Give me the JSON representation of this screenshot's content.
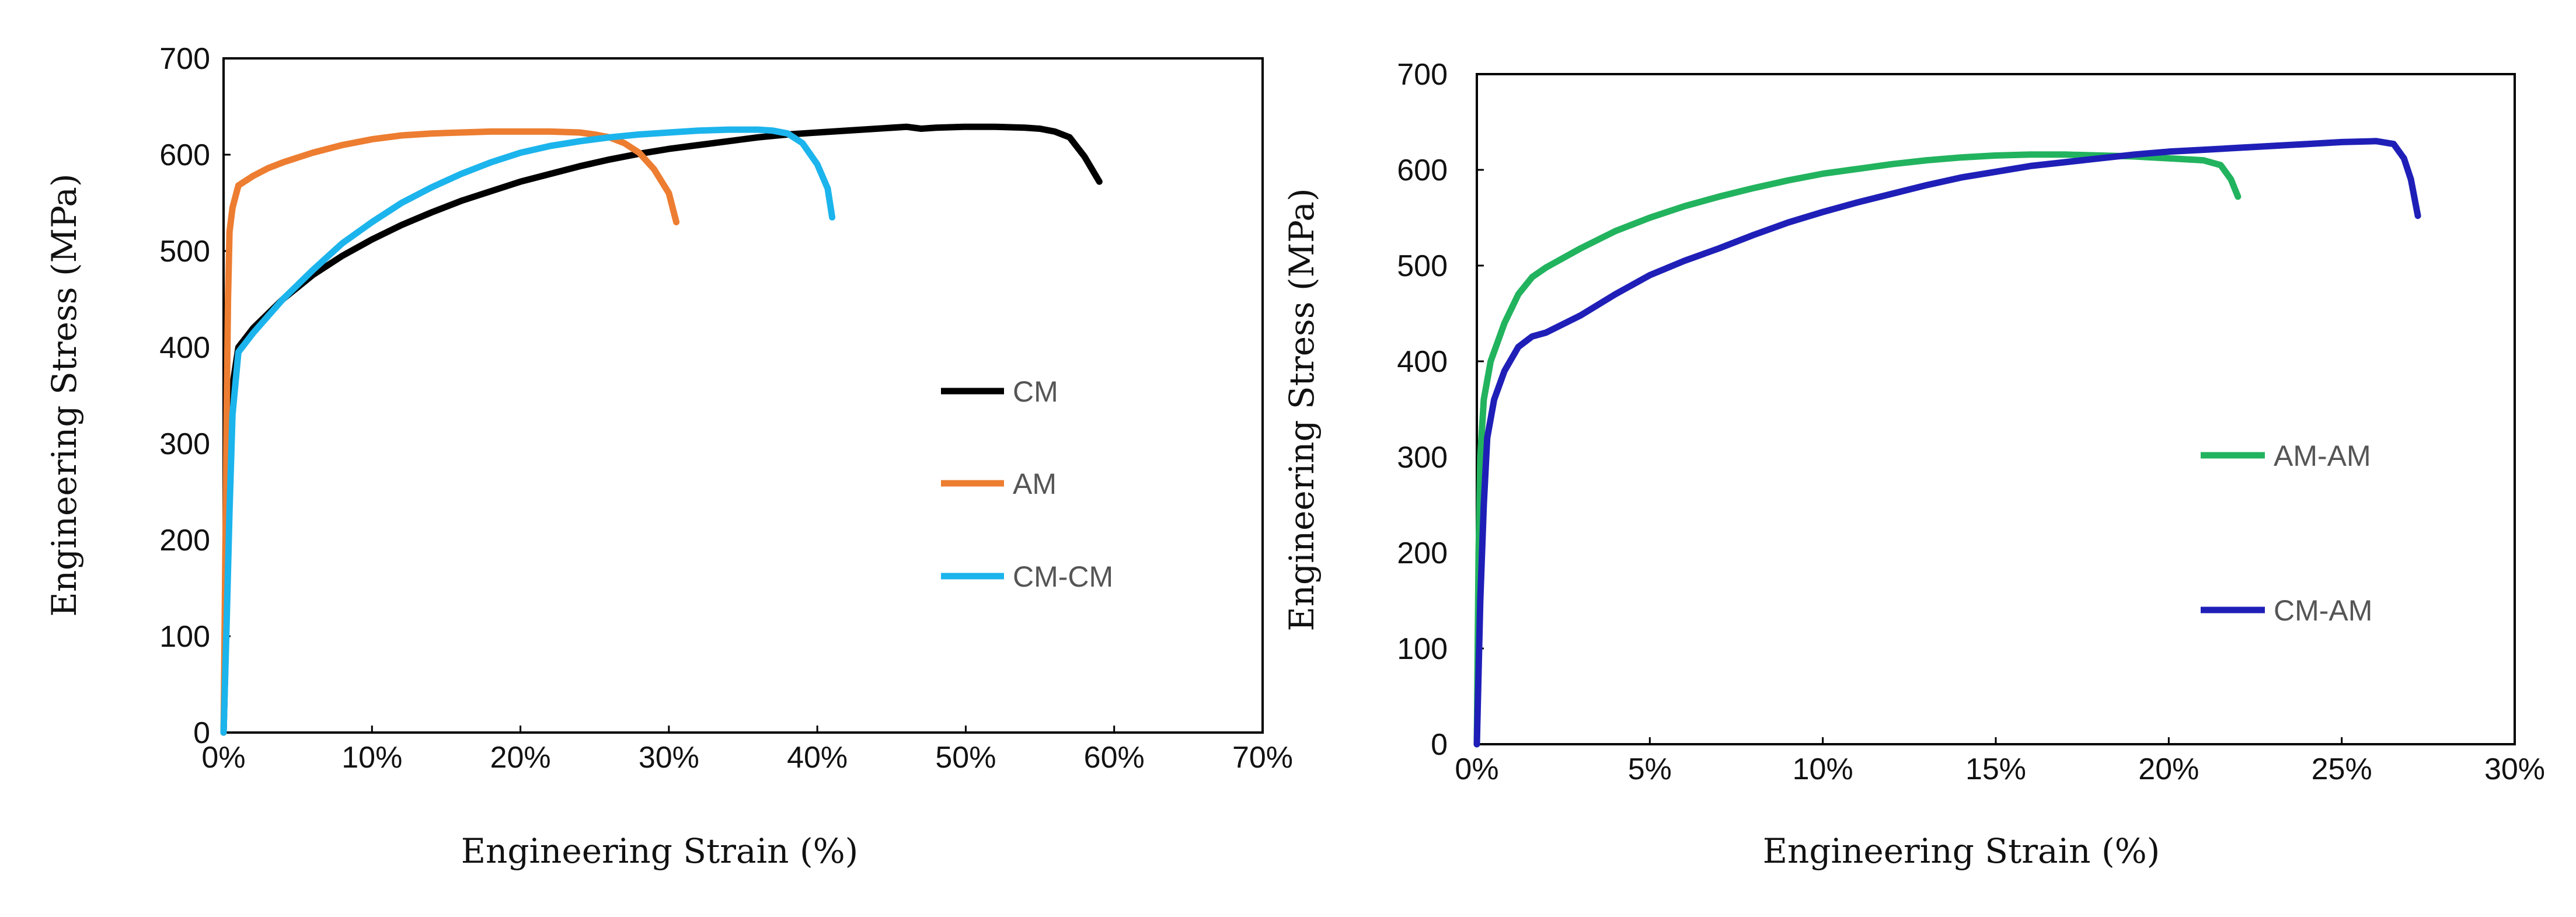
{
  "chart_data": [
    {
      "type": "line",
      "xlabel": "Engineering Strain (%)",
      "ylabel": "Engineering Stress (MPa)",
      "xlim": [
        0,
        70
      ],
      "ylim": [
        0,
        700
      ],
      "x_ticks": [
        0,
        10,
        20,
        30,
        40,
        50,
        60,
        70
      ],
      "x_tick_labels": [
        "0%",
        "10%",
        "20%",
        "30%",
        "40%",
        "50%",
        "60%",
        "70%"
      ],
      "y_ticks": [
        0,
        100,
        200,
        300,
        400,
        500,
        600,
        700
      ],
      "y_tick_labels": [
        "0",
        "100",
        "200",
        "300",
        "400",
        "500",
        "600",
        "700"
      ],
      "legend_position": "middle-right",
      "series": [
        {
          "name": "CM",
          "color": "#000000",
          "points": [
            [
              0,
              0
            ],
            [
              0.2,
              120
            ],
            [
              0.4,
              260
            ],
            [
              0.6,
              360
            ],
            [
              1,
              400
            ],
            [
              2,
              420
            ],
            [
              4,
              450
            ],
            [
              6,
              475
            ],
            [
              8,
              495
            ],
            [
              10,
              512
            ],
            [
              12,
              527
            ],
            [
              14,
              540
            ],
            [
              16,
              552
            ],
            [
              18,
              562
            ],
            [
              20,
              572
            ],
            [
              22,
              580
            ],
            [
              24,
              588
            ],
            [
              26,
              595
            ],
            [
              28,
              601
            ],
            [
              30,
              606
            ],
            [
              32,
              610
            ],
            [
              34,
              614
            ],
            [
              36,
              618
            ],
            [
              38,
              621
            ],
            [
              40,
              623
            ],
            [
              42,
              625
            ],
            [
              44,
              627
            ],
            [
              46,
              629
            ],
            [
              47,
              627
            ],
            [
              48,
              628
            ],
            [
              50,
              629
            ],
            [
              52,
              629
            ],
            [
              54,
              628
            ],
            [
              55,
              627
            ],
            [
              56,
              624
            ],
            [
              57,
              618
            ],
            [
              58,
              598
            ],
            [
              59,
              572
            ]
          ]
        },
        {
          "name": "AM",
          "color": "#ED7D31",
          "points": [
            [
              0,
              0
            ],
            [
              0.1,
              150
            ],
            [
              0.2,
              320
            ],
            [
              0.3,
              450
            ],
            [
              0.4,
              520
            ],
            [
              0.6,
              545
            ],
            [
              1,
              568
            ],
            [
              2,
              578
            ],
            [
              3,
              586
            ],
            [
              4,
              592
            ],
            [
              6,
              602
            ],
            [
              8,
              610
            ],
            [
              10,
              616
            ],
            [
              12,
              620
            ],
            [
              14,
              622
            ],
            [
              16,
              623
            ],
            [
              18,
              624
            ],
            [
              20,
              624
            ],
            [
              22,
              624
            ],
            [
              24,
              623
            ],
            [
              25,
              621
            ],
            [
              26,
              618
            ],
            [
              27,
              612
            ],
            [
              28,
              602
            ],
            [
              29,
              585
            ],
            [
              30,
              560
            ],
            [
              30.5,
              530
            ]
          ]
        },
        {
          "name": "CM-CM",
          "color": "#1CB4EC",
          "points": [
            [
              0,
              0
            ],
            [
              0.2,
              110
            ],
            [
              0.4,
              230
            ],
            [
              0.6,
              330
            ],
            [
              1,
              395
            ],
            [
              2,
              415
            ],
            [
              4,
              450
            ],
            [
              6,
              480
            ],
            [
              8,
              508
            ],
            [
              10,
              530
            ],
            [
              12,
              550
            ],
            [
              14,
              566
            ],
            [
              16,
              580
            ],
            [
              18,
              592
            ],
            [
              20,
              602
            ],
            [
              22,
              609
            ],
            [
              24,
              614
            ],
            [
              26,
              618
            ],
            [
              28,
              621
            ],
            [
              30,
              623
            ],
            [
              32,
              625
            ],
            [
              34,
              626
            ],
            [
              36,
              626
            ],
            [
              37,
              625
            ],
            [
              38,
              622
            ],
            [
              39,
              612
            ],
            [
              40,
              590
            ],
            [
              40.7,
              565
            ],
            [
              41,
              535
            ]
          ]
        }
      ]
    },
    {
      "type": "line",
      "xlabel": "Engineering Strain (%)",
      "ylabel": "Engineering Stress (MPa)",
      "xlim": [
        0,
        30
      ],
      "ylim": [
        0,
        700
      ],
      "x_ticks": [
        0,
        5,
        10,
        15,
        20,
        25,
        30
      ],
      "x_tick_labels": [
        "0%",
        "5%",
        "10%",
        "15%",
        "20%",
        "25%",
        "30%"
      ],
      "y_ticks": [
        0,
        100,
        200,
        300,
        400,
        500,
        600,
        700
      ],
      "y_tick_labels": [
        "0",
        "100",
        "200",
        "300",
        "400",
        "500",
        "600",
        "700"
      ],
      "legend_position": "middle-right",
      "series": [
        {
          "name": "AM-AM",
          "color": "#22B35E",
          "points": [
            [
              0,
              0
            ],
            [
              0.05,
              200
            ],
            [
              0.1,
              300
            ],
            [
              0.2,
              360
            ],
            [
              0.4,
              400
            ],
            [
              0.8,
              440
            ],
            [
              1.2,
              470
            ],
            [
              1.6,
              488
            ],
            [
              2,
              498
            ],
            [
              3,
              518
            ],
            [
              4,
              536
            ],
            [
              5,
              550
            ],
            [
              6,
              562
            ],
            [
              7,
              572
            ],
            [
              8,
              581
            ],
            [
              9,
              589
            ],
            [
              10,
              596
            ],
            [
              11,
              601
            ],
            [
              12,
              606
            ],
            [
              13,
              610
            ],
            [
              14,
              613
            ],
            [
              15,
              615
            ],
            [
              16,
              616
            ],
            [
              17,
              616
            ],
            [
              18,
              615
            ],
            [
              19,
              614
            ],
            [
              20,
              612
            ],
            [
              21,
              610
            ],
            [
              21.5,
              605
            ],
            [
              21.8,
              590
            ],
            [
              22,
              572
            ]
          ]
        },
        {
          "name": "CM-AM",
          "color": "#1F1FB8",
          "points": [
            [
              0,
              0
            ],
            [
              0.1,
              150
            ],
            [
              0.2,
              250
            ],
            [
              0.3,
              320
            ],
            [
              0.5,
              360
            ],
            [
              0.8,
              390
            ],
            [
              1.2,
              415
            ],
            [
              1.6,
              426
            ],
            [
              2,
              430
            ],
            [
              3,
              448
            ],
            [
              4,
              470
            ],
            [
              5,
              490
            ],
            [
              6,
              505
            ],
            [
              7,
              518
            ],
            [
              8,
              532
            ],
            [
              9,
              545
            ],
            [
              10,
              556
            ],
            [
              11,
              566
            ],
            [
              12,
              575
            ],
            [
              13,
              584
            ],
            [
              14,
              592
            ],
            [
              15,
              598
            ],
            [
              16,
              604
            ],
            [
              17,
              608
            ],
            [
              18,
              612
            ],
            [
              19,
              616
            ],
            [
              20,
              619
            ],
            [
              21,
              621
            ],
            [
              22,
              623
            ],
            [
              23,
              625
            ],
            [
              24,
              627
            ],
            [
              25,
              629
            ],
            [
              26,
              630
            ],
            [
              26.5,
              627
            ],
            [
              26.8,
              612
            ],
            [
              27,
              590
            ],
            [
              27.2,
              552
            ]
          ]
        }
      ]
    }
  ]
}
